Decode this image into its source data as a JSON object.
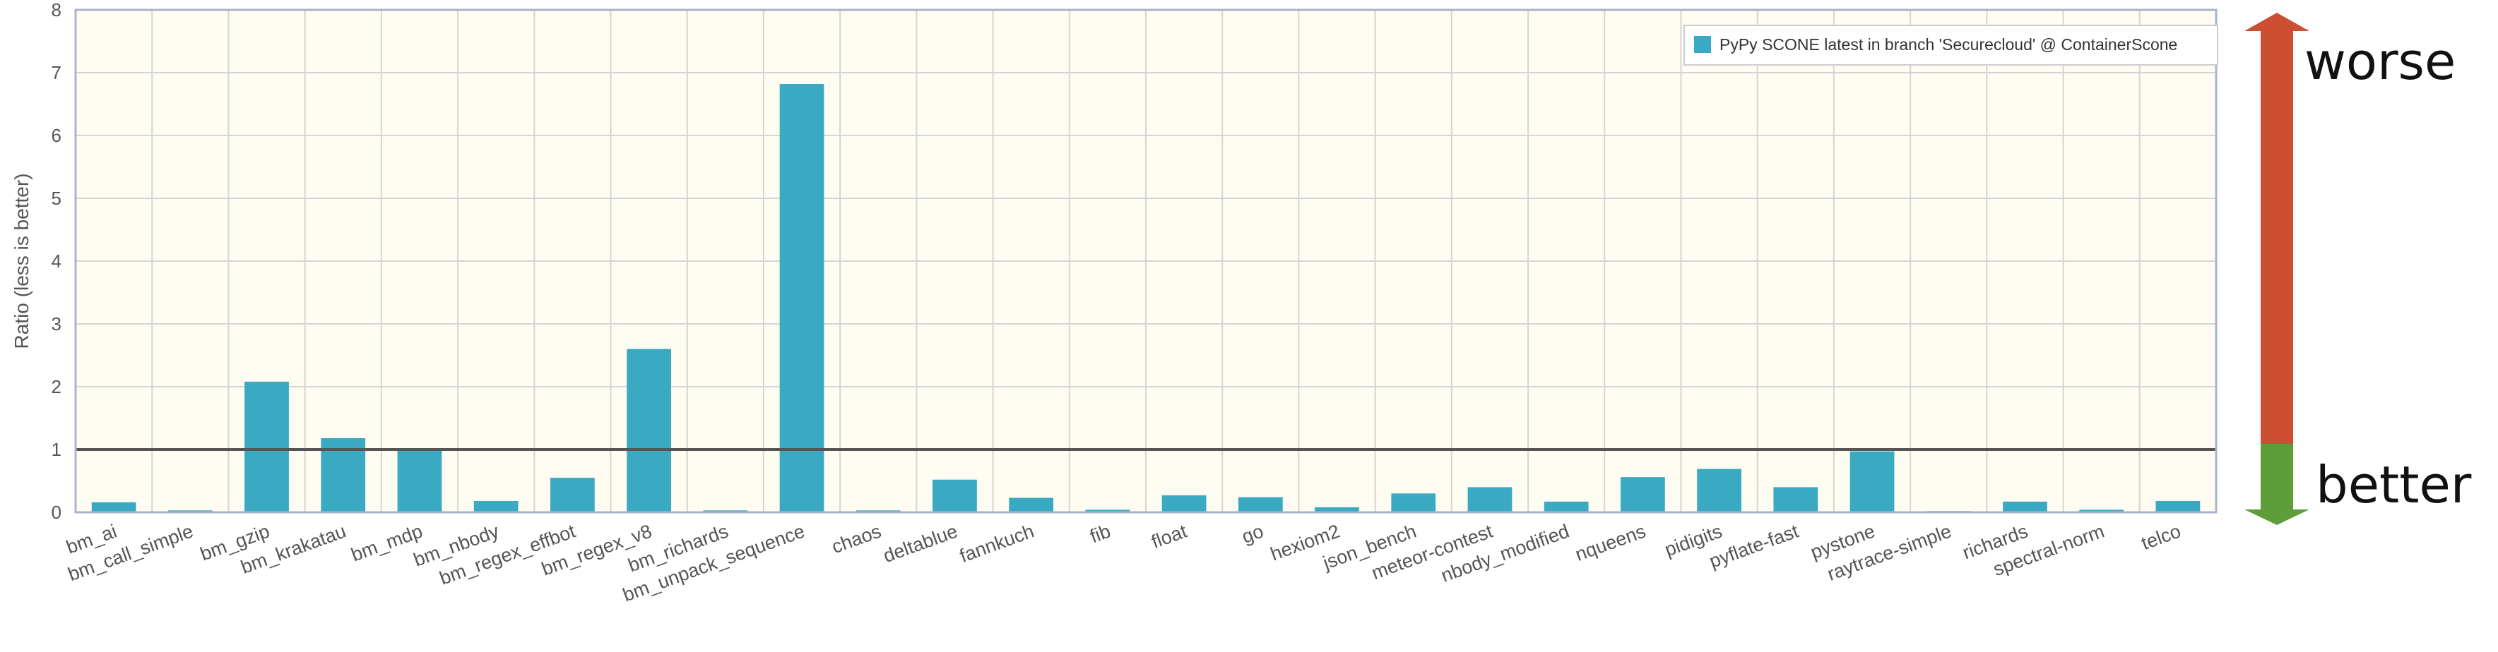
{
  "chart_data": {
    "type": "bar",
    "title": "",
    "xlabel": "",
    "ylabel": "Ratio  (less is better)",
    "ylim": [
      0,
      8
    ],
    "yticks": [
      0,
      1,
      2,
      3,
      4,
      5,
      6,
      7,
      8
    ],
    "grid": true,
    "baseline": 1,
    "legend_position": "top-right",
    "categories": [
      "bm_ai",
      "bm_call_simple",
      "bm_gzip",
      "bm_krakatau",
      "bm_mdp",
      "bm_nbody",
      "bm_regex_effbot",
      "bm_regex_v8",
      "bm_richards",
      "bm_unpack_sequence",
      "chaos",
      "deltablue",
      "fannkuch",
      "fib",
      "float",
      "go",
      "hexiom2",
      "json_bench",
      "meteor-contest",
      "nbody_modified",
      "nqueens",
      "pidigits",
      "pyflate-fast",
      "pystone",
      "raytrace-simple",
      "richards",
      "spectral-norm",
      "telco"
    ],
    "series": [
      {
        "name": "PyPy SCONE latest in branch 'Securecloud' @ ContainerScone",
        "color": "#3aa9c2",
        "values": [
          0.16,
          0.03,
          2.08,
          1.18,
          1.02,
          0.18,
          0.55,
          2.6,
          0.03,
          6.82,
          0.03,
          0.52,
          0.23,
          0.04,
          0.27,
          0.24,
          0.08,
          0.3,
          0.4,
          0.17,
          0.56,
          0.69,
          0.4,
          0.97,
          0.02,
          0.17,
          0.04,
          0.18
        ]
      }
    ],
    "colors": {
      "plot_background": "#fffcf1",
      "plot_border": "#aab3cf",
      "grid": "#d5d5d5",
      "baseline": "#555555"
    }
  },
  "side_indicator": {
    "worse_label": "worse",
    "better_label": "better",
    "worse_color": "#cc4f33",
    "better_color": "#5d9e3b"
  }
}
